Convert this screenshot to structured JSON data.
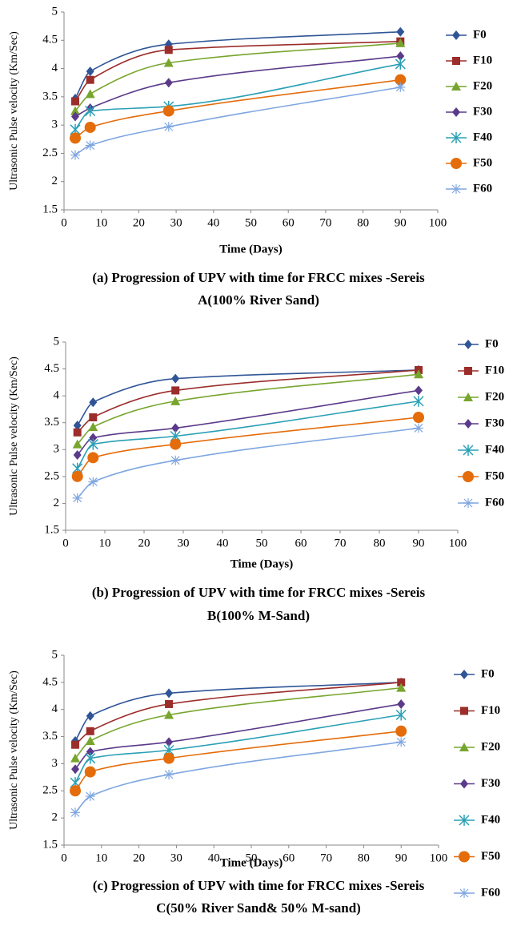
{
  "chart_data": [
    {
      "type": "line",
      "caption": [
        "(a) Progression  of UPV with time for FRCC mixes -Sereis",
        "A(100% River Sand)"
      ],
      "x_label": "Time (Days)",
      "y_label": "Ultrasonic Pulse velocity (Km/Sec)",
      "x": [
        3,
        7,
        28,
        90
      ],
      "xlim": [
        0,
        100
      ],
      "xticks": [
        0,
        10,
        20,
        30,
        40,
        50,
        60,
        70,
        80,
        90,
        100
      ],
      "ylim": [
        1.5,
        5
      ],
      "yticks": [
        1.5,
        2,
        2.5,
        3,
        3.5,
        4,
        4.5,
        5
      ],
      "grid": false,
      "series": [
        {
          "name": "F0",
          "color": "#2f5597",
          "marker": "diamond",
          "values": [
            3.47,
            3.95,
            4.43,
            4.65
          ]
        },
        {
          "name": "F10",
          "color": "#9b2d2a",
          "marker": "square",
          "values": [
            3.42,
            3.8,
            4.33,
            4.48
          ]
        },
        {
          "name": "F20",
          "color": "#77a52d",
          "marker": "triangle",
          "values": [
            3.25,
            3.55,
            4.1,
            4.45
          ]
        },
        {
          "name": "F30",
          "color": "#5b3a8a",
          "marker": "diamond",
          "values": [
            3.15,
            3.3,
            3.75,
            4.22
          ]
        },
        {
          "name": "F40",
          "color": "#2aa0b5",
          "marker": "asterisk",
          "values": [
            2.92,
            3.25,
            3.33,
            4.08
          ]
        },
        {
          "name": "F50",
          "color": "#e46c0a",
          "marker": "circle",
          "values": [
            2.77,
            2.96,
            3.25,
            3.8
          ]
        },
        {
          "name": "F60",
          "color": "#7ea6e0",
          "marker": "star",
          "values": [
            2.47,
            2.64,
            2.97,
            3.67
          ]
        }
      ]
    },
    {
      "type": "line",
      "caption": [
        "(b) Progression  of UPV with time for FRCC mixes -Sereis",
        "B(100% M-Sand)"
      ],
      "x_label": "Time (Days)",
      "y_label": "Ultrasonic Pulse velocity (Km/Sec)",
      "x": [
        3,
        7,
        28,
        90
      ],
      "xlim": [
        0,
        100
      ],
      "xticks": [
        0,
        10,
        20,
        30,
        40,
        50,
        60,
        70,
        80,
        90,
        100
      ],
      "ylim": [
        1.5,
        5
      ],
      "yticks": [
        1.5,
        2,
        2.5,
        3,
        3.5,
        4,
        4.5,
        5
      ],
      "grid": false,
      "series": [
        {
          "name": "F0",
          "color": "#2f5597",
          "marker": "diamond",
          "values": [
            3.45,
            3.88,
            4.32,
            4.48
          ]
        },
        {
          "name": "F10",
          "color": "#9b2d2a",
          "marker": "square",
          "values": [
            3.32,
            3.6,
            4.1,
            4.48
          ]
        },
        {
          "name": "F20",
          "color": "#77a52d",
          "marker": "triangle",
          "values": [
            3.1,
            3.42,
            3.9,
            4.4
          ]
        },
        {
          "name": "F30",
          "color": "#5b3a8a",
          "marker": "diamond",
          "values": [
            2.9,
            3.22,
            3.4,
            4.1
          ]
        },
        {
          "name": "F40",
          "color": "#2aa0b5",
          "marker": "asterisk",
          "values": [
            2.65,
            3.1,
            3.25,
            3.9
          ]
        },
        {
          "name": "F50",
          "color": "#e46c0a",
          "marker": "circle",
          "values": [
            2.5,
            2.85,
            3.1,
            3.6
          ]
        },
        {
          "name": "F60",
          "color": "#7ea6e0",
          "marker": "star",
          "values": [
            2.1,
            2.4,
            2.8,
            3.4
          ]
        }
      ]
    },
    {
      "type": "line",
      "caption": [
        "(c) Progression  of UPV with time for FRCC mixes -Sereis",
        "C(50% River Sand& 50% M-sand)"
      ],
      "x_label": "Time (Days)",
      "y_label": "Ultrasonic Pulse velocity (Km/Sec)",
      "x": [
        3,
        7,
        28,
        90
      ],
      "xlim": [
        0,
        100
      ],
      "xticks": [
        0,
        10,
        20,
        30,
        40,
        50,
        60,
        70,
        80,
        90,
        100
      ],
      "ylim": [
        1.5,
        5
      ],
      "yticks": [
        1.5,
        2,
        2.5,
        3,
        3.5,
        4,
        4.5,
        5
      ],
      "grid": false,
      "series": [
        {
          "name": "F0",
          "color": "#2f5597",
          "marker": "diamond",
          "values": [
            3.42,
            3.88,
            4.3,
            4.5
          ]
        },
        {
          "name": "F10",
          "color": "#9b2d2a",
          "marker": "square",
          "values": [
            3.35,
            3.6,
            4.1,
            4.5
          ]
        },
        {
          "name": "F20",
          "color": "#77a52d",
          "marker": "triangle",
          "values": [
            3.1,
            3.42,
            3.9,
            4.4
          ]
        },
        {
          "name": "F30",
          "color": "#5b3a8a",
          "marker": "diamond",
          "values": [
            2.9,
            3.22,
            3.4,
            4.1
          ]
        },
        {
          "name": "F40",
          "color": "#2aa0b5",
          "marker": "asterisk",
          "values": [
            2.65,
            3.1,
            3.25,
            3.9
          ]
        },
        {
          "name": "F50",
          "color": "#e46c0a",
          "marker": "circle",
          "values": [
            2.5,
            2.85,
            3.1,
            3.6
          ]
        },
        {
          "name": "F60",
          "color": "#7ea6e0",
          "marker": "star",
          "values": [
            2.1,
            2.4,
            2.8,
            3.4
          ]
        }
      ]
    }
  ]
}
